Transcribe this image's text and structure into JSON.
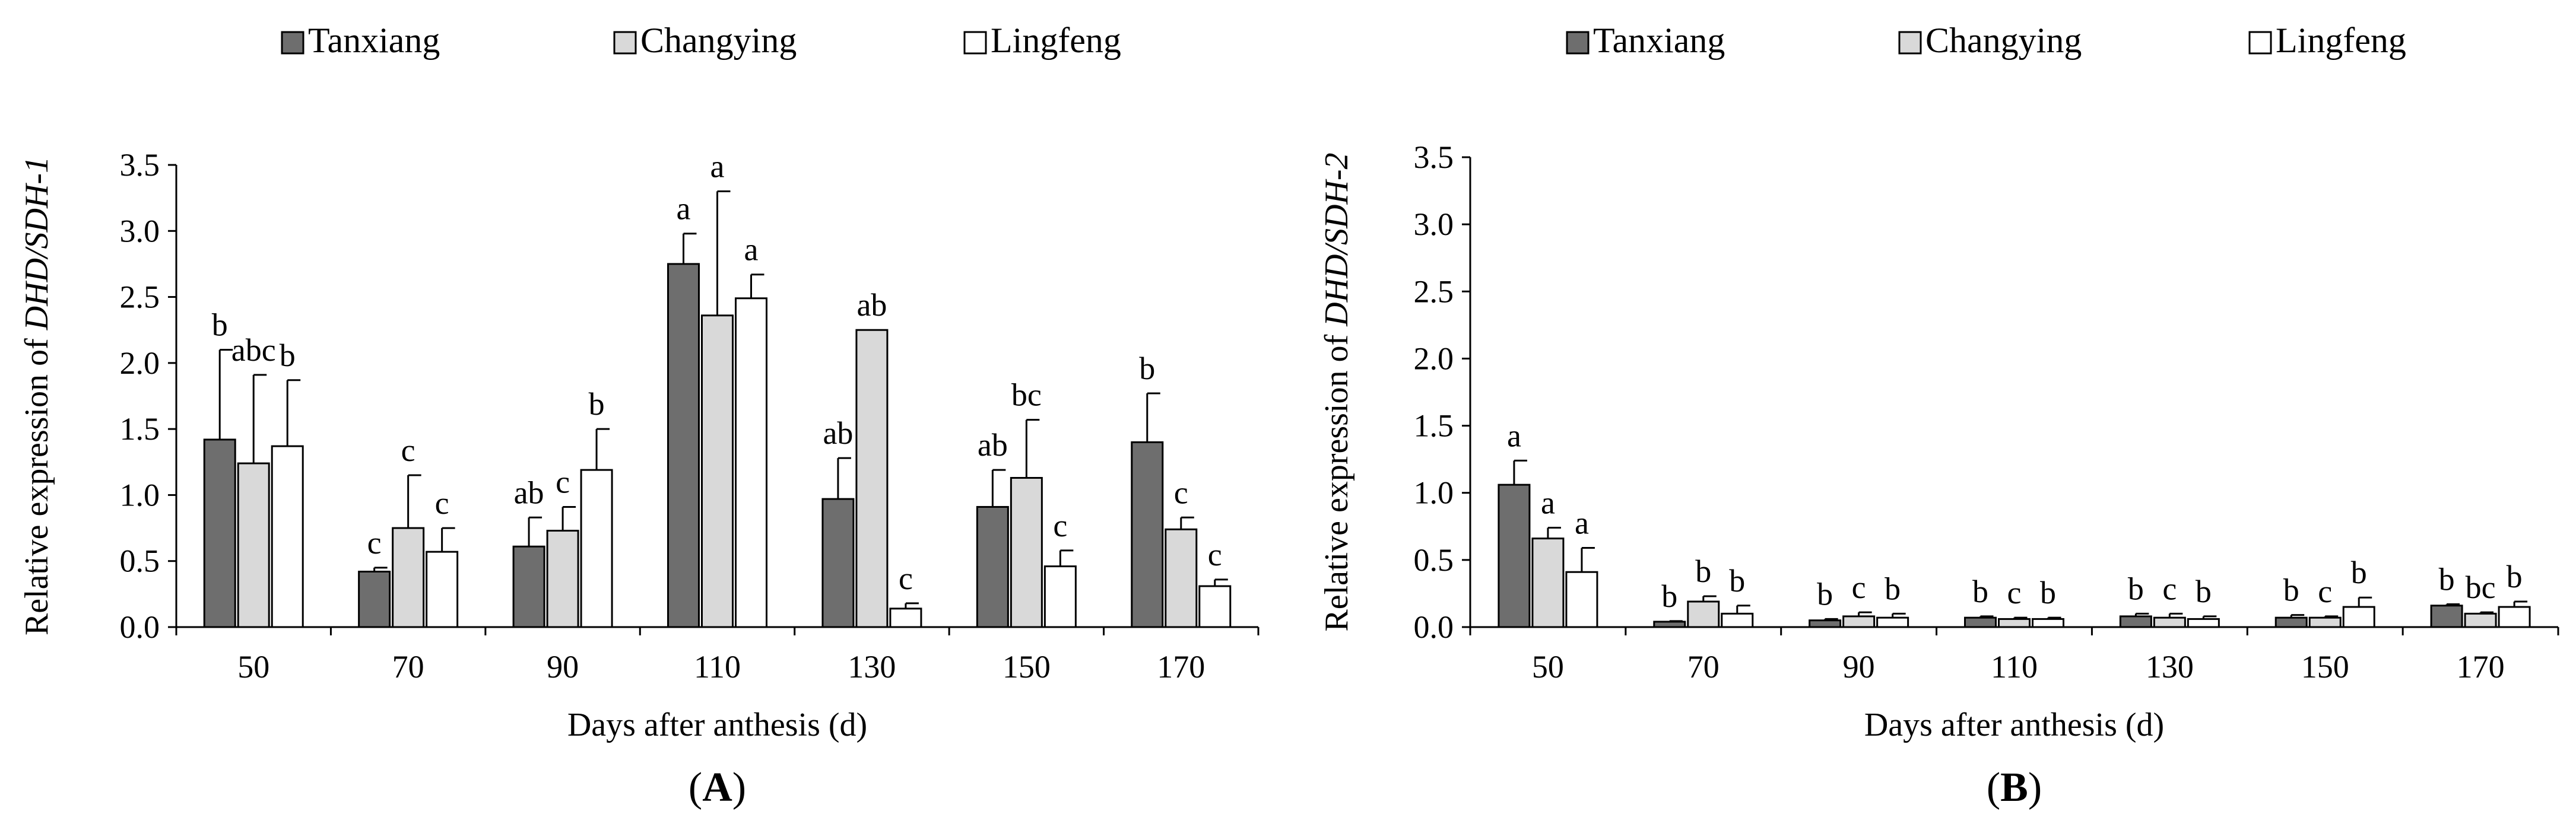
{
  "legend": [
    {
      "name": "Tanxiang",
      "color": "#6e6e6e"
    },
    {
      "name": "Changying",
      "color": "#d9d9d9"
    },
    {
      "name": "Lingfeng",
      "color": "#ffffff"
    }
  ],
  "chart_data": [
    {
      "type": "bar",
      "panel": "(A)",
      "panel_letter": "A",
      "xlabel": "Days after anthesis (d)",
      "ylabel_prefix": "Relative expression of ",
      "ylabel_gene": "DHD/SDH-1",
      "ylim": [
        0,
        3.5
      ],
      "yticks": [
        "0.0",
        "0.5",
        "1.0",
        "1.5",
        "2.0",
        "2.5",
        "3.0",
        "3.5"
      ],
      "categories": [
        "50",
        "70",
        "90",
        "110",
        "130",
        "150",
        "170"
      ],
      "series": [
        {
          "name": "Tanxiang",
          "values": [
            1.42,
            0.42,
            0.61,
            2.75,
            0.97,
            0.91,
            1.4
          ],
          "errors": [
            0.68,
            0.03,
            0.22,
            0.23,
            0.31,
            0.28,
            0.37
          ],
          "letters": [
            "b",
            "c",
            "ab",
            "a",
            "ab",
            "ab",
            "b"
          ]
        },
        {
          "name": "Changying",
          "values": [
            1.24,
            0.75,
            0.73,
            2.36,
            2.25,
            1.13,
            0.74
          ],
          "errors": [
            0.67,
            0.4,
            0.18,
            0.94,
            0.0,
            0.44,
            0.09
          ],
          "letters": [
            "abc",
            "c",
            "c",
            "a",
            "ab",
            "bc",
            "c"
          ]
        },
        {
          "name": "Lingfeng",
          "values": [
            1.37,
            0.57,
            1.19,
            2.49,
            0.14,
            0.46,
            0.31
          ],
          "errors": [
            0.5,
            0.18,
            0.31,
            0.18,
            0.04,
            0.12,
            0.05
          ],
          "letters": [
            "b",
            "c",
            "b",
            "a",
            "c",
            "c",
            "c"
          ]
        }
      ]
    },
    {
      "type": "bar",
      "panel": "(B)",
      "panel_letter": "B",
      "xlabel": "Days after anthesis (d)",
      "ylabel_prefix": "Relative expression of ",
      "ylabel_gene": "DHD/SDH-2",
      "ylim": [
        0,
        3.5
      ],
      "yticks": [
        "0.0",
        "0.5",
        "1.0",
        "1.5",
        "2.0",
        "2.5",
        "3.0",
        "3.5"
      ],
      "categories": [
        "50",
        "70",
        "90",
        "110",
        "130",
        "150",
        "170"
      ],
      "series": [
        {
          "name": "Tanxiang",
          "values": [
            1.06,
            0.04,
            0.05,
            0.07,
            0.08,
            0.07,
            0.16
          ],
          "errors": [
            0.18,
            0.005,
            0.01,
            0.01,
            0.02,
            0.02,
            0.01
          ],
          "letters": [
            "a",
            "b",
            "b",
            "b",
            "b",
            "b",
            "b"
          ]
        },
        {
          "name": "Changying",
          "values": [
            0.66,
            0.19,
            0.08,
            0.06,
            0.07,
            0.07,
            0.1
          ],
          "errors": [
            0.08,
            0.04,
            0.03,
            0.01,
            0.03,
            0.01,
            0.01
          ],
          "letters": [
            "a",
            "b",
            "c",
            "c",
            "c",
            "c",
            "bc"
          ]
        },
        {
          "name": "Lingfeng",
          "values": [
            0.41,
            0.1,
            0.07,
            0.06,
            0.06,
            0.15,
            0.15
          ],
          "errors": [
            0.18,
            0.06,
            0.03,
            0.01,
            0.02,
            0.07,
            0.04
          ],
          "letters": [
            "a",
            "b",
            "b",
            "b",
            "b",
            "b",
            "b"
          ]
        }
      ]
    }
  ]
}
